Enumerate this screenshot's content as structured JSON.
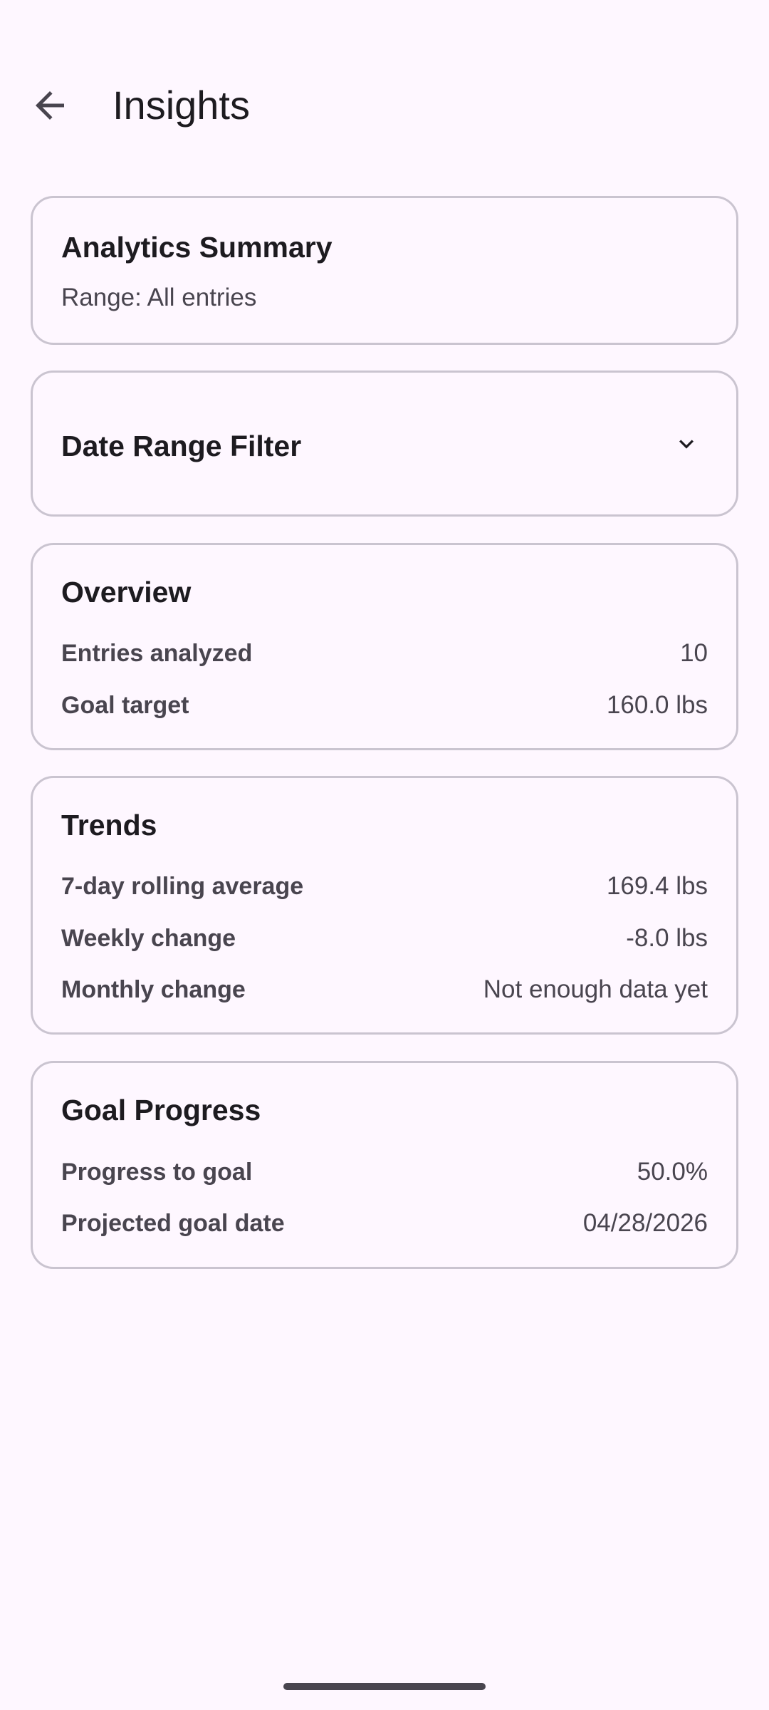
{
  "header": {
    "title": "Insights",
    "back_icon": "arrow-back-icon"
  },
  "summary": {
    "title": "Analytics Summary",
    "range": "Range: All entries"
  },
  "filter": {
    "title": "Date Range Filter",
    "icon": "chevron-down-icon",
    "expanded": false
  },
  "overview": {
    "title": "Overview",
    "rows": [
      {
        "label": "Entries analyzed",
        "value": "10"
      },
      {
        "label": "Goal target",
        "value": "160.0 lbs"
      }
    ]
  },
  "trends": {
    "title": "Trends",
    "rows": [
      {
        "label": "7-day rolling average",
        "value": "169.4 lbs"
      },
      {
        "label": "Weekly change",
        "value": "-8.0 lbs"
      },
      {
        "label": "Monthly change",
        "value": "Not enough data yet"
      }
    ]
  },
  "goal": {
    "title": "Goal Progress",
    "rows": [
      {
        "label": "Progress to goal",
        "value": "50.0%"
      },
      {
        "label": "Projected goal date",
        "value": "04/28/2026"
      }
    ]
  },
  "colors": {
    "background": "#FEF7FF",
    "outline": "#CAC4D0",
    "text": "#1D1B20",
    "secondary_text": "#49454F"
  }
}
